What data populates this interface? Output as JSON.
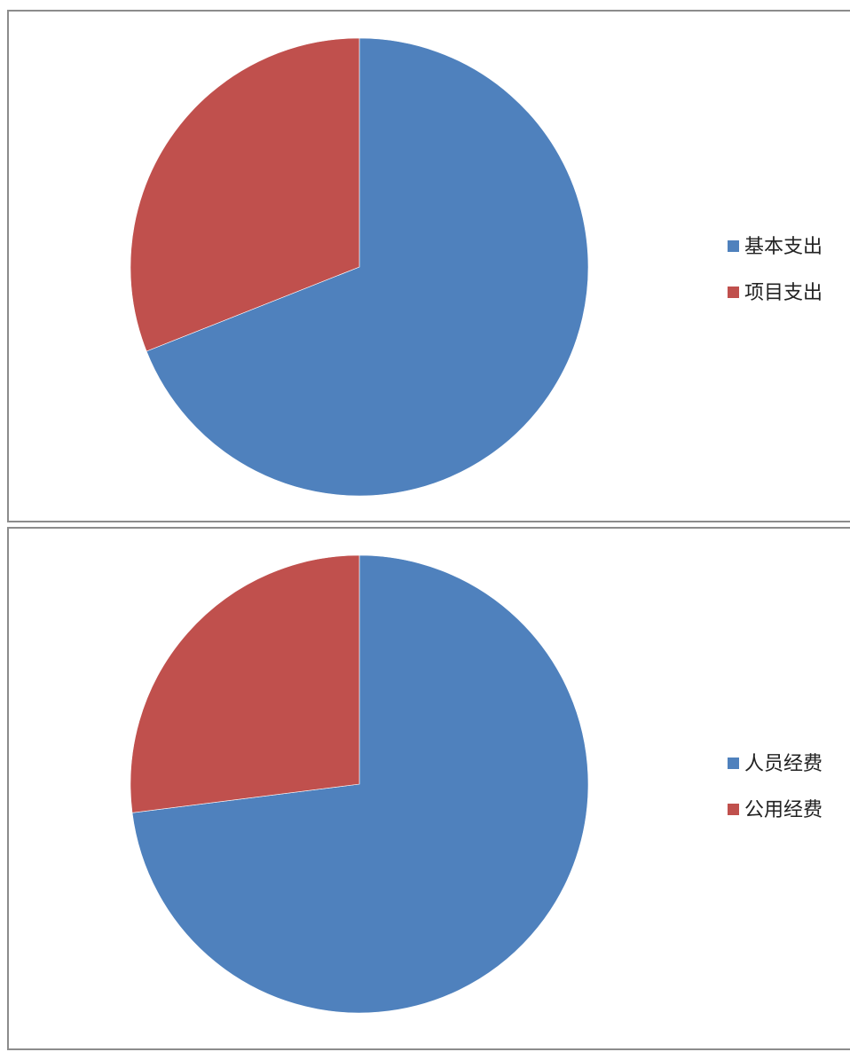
{
  "chart_data": [
    {
      "type": "pie",
      "title": "",
      "categories": [
        "基本支出",
        "项目支出"
      ],
      "values": [
        69,
        31
      ],
      "colors": [
        "#4f81bd",
        "#c0504d"
      ],
      "start_angle_deg": 0,
      "direction": "clockwise",
      "legend": {
        "position": "right",
        "entries": [
          "基本支出",
          "项目支出"
        ]
      }
    },
    {
      "type": "pie",
      "title": "",
      "categories": [
        "人员经费",
        "公用经费"
      ],
      "values": [
        73,
        27
      ],
      "colors": [
        "#4f81bd",
        "#c0504d"
      ],
      "start_angle_deg": 0,
      "direction": "clockwise",
      "legend": {
        "position": "right",
        "entries": [
          "人员经费",
          "公用经费"
        ]
      }
    }
  ]
}
